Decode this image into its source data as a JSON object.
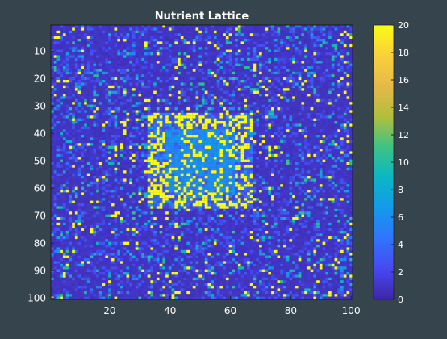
{
  "chart_data": {
    "type": "heatmap",
    "title": "Nutrient Lattice",
    "xlabel": "",
    "ylabel": "",
    "rows": 100,
    "cols": 100,
    "xlim": [
      1,
      100
    ],
    "ylim": [
      1,
      100
    ],
    "y_direction": "reversed",
    "xticks": [
      20,
      40,
      60,
      80,
      100
    ],
    "yticks": [
      10,
      20,
      30,
      40,
      50,
      60,
      70,
      80,
      90,
      100
    ],
    "clim": [
      0,
      20
    ],
    "colorbar_ticks": [
      0,
      2,
      4,
      6,
      8,
      10,
      12,
      14,
      16,
      18,
      20
    ],
    "colormap": [
      "#3e26a8",
      "#4748f2",
      "#2f75fb",
      "#139aeb",
      "#0bb6c5",
      "#3dc385",
      "#b2be3c",
      "#e5b94a",
      "#fad13a",
      "#f9fb15"
    ],
    "background_value": 1,
    "hotspot": {
      "center_row": 50,
      "center_col": 50,
      "half_width": 16,
      "value": 5
    },
    "hotspot_edge_band": {
      "inner": 11,
      "outer": 17,
      "dense_value": 20
    },
    "noise": {
      "high_value": 20,
      "mid_value_min": 4,
      "mid_value_max": 11
    },
    "grid": false,
    "colorbar_position": "right"
  }
}
